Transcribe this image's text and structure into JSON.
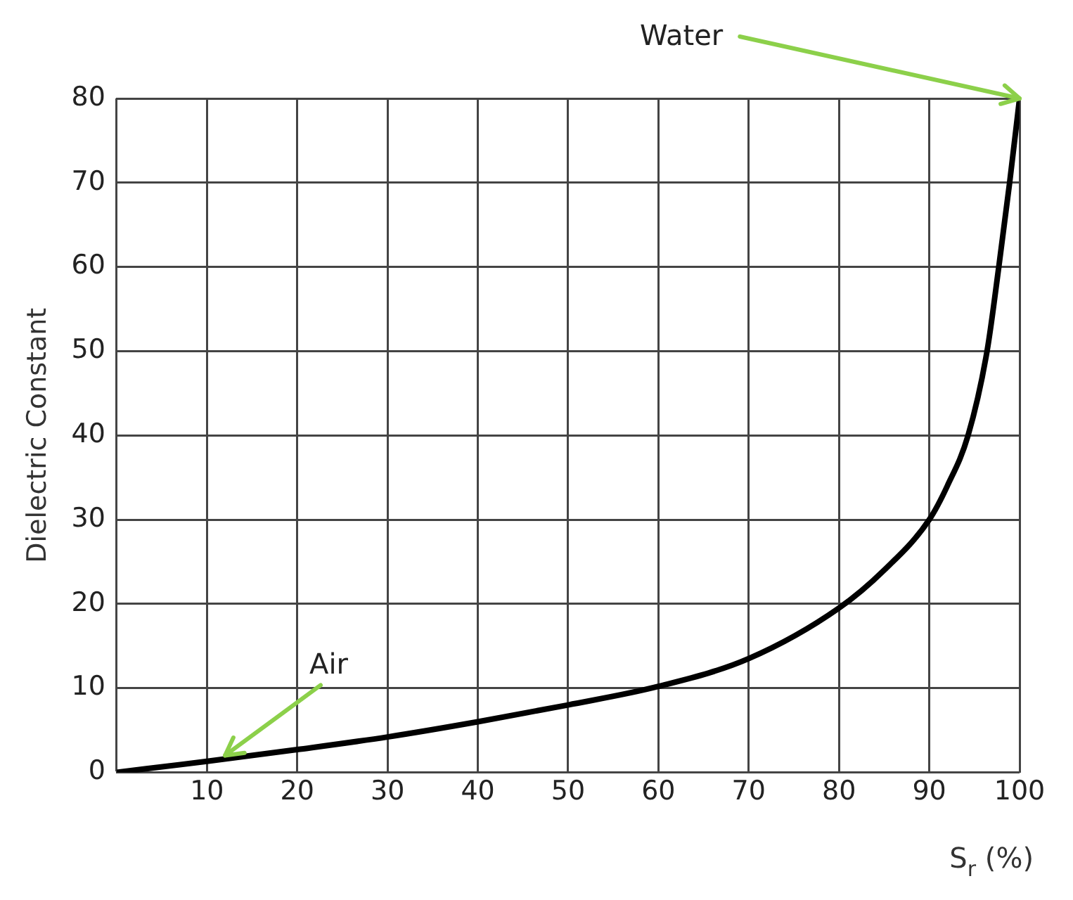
{
  "chart_data": {
    "type": "line",
    "xlabel": "S$_{r}$ (%)",
    "ylabel": "Dielectric Constant",
    "x": [
      0,
      10,
      20,
      30,
      40,
      50,
      60,
      70,
      80,
      85,
      90,
      92,
      94.3,
      96.4,
      97.7,
      98.9,
      100
    ],
    "series": [
      {
        "color": "#000000",
        "values": [
          0,
          1.3,
          2.7,
          4.2,
          6,
          8,
          10.2,
          13.5,
          19.5,
          24,
          30,
          34,
          40,
          50,
          60,
          70,
          80
        ]
      }
    ],
    "xlim": [
      0,
      100
    ],
    "ylim": [
      0,
      80
    ],
    "xticks": [
      {
        "value": 0,
        "label": null
      },
      10,
      20,
      30,
      40,
      50,
      60,
      70,
      80,
      90,
      100
    ],
    "yticks": [
      0,
      10,
      20,
      30,
      40,
      50,
      60,
      70,
      80
    ],
    "grid": true,
    "legend": false,
    "marker": "none",
    "line_style": "solid",
    "annotations": [
      {
        "text": "Water",
        "x": 100,
        "y": 80
      },
      {
        "text": "Air",
        "x": 12,
        "y": 2
      }
    ]
  }
}
